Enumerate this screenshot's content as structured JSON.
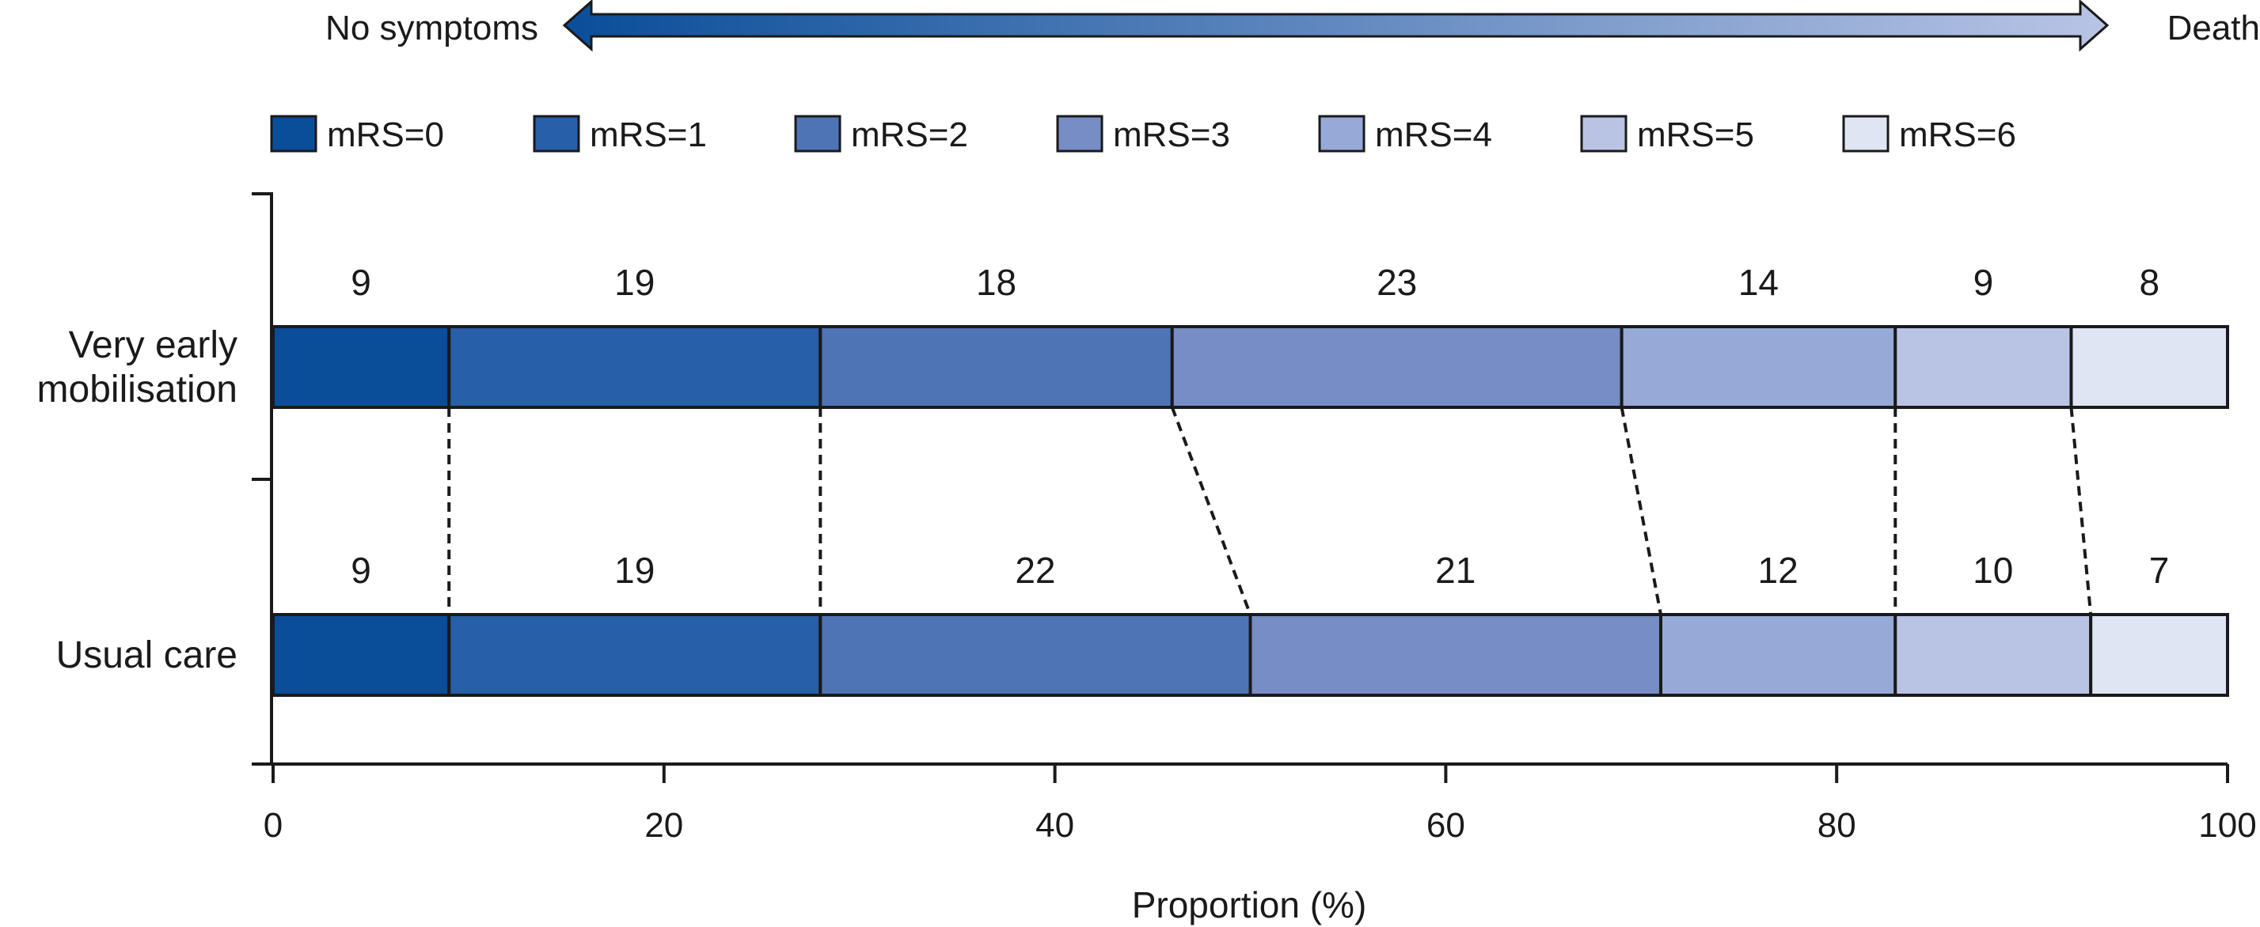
{
  "chart_data": {
    "type": "bar",
    "orientation": "horizontal",
    "stacked": true,
    "scale_arrow": {
      "left": "No symptoms",
      "right": "Death"
    },
    "legend": [
      "mRS=0",
      "mRS=1",
      "mRS=2",
      "mRS=3",
      "mRS=4",
      "mRS=5",
      "mRS=6"
    ],
    "colors": [
      "#0a4d99",
      "#275fa8",
      "#4f74b6",
      "#768dc5",
      "#97a9d6",
      "#b9c4e5",
      "#e0e5f3"
    ],
    "categories": [
      "Very early\nmobilisation",
      "Usual care"
    ],
    "rows": [
      {
        "label": "Very early\nmobilisation",
        "values": [
          9,
          19,
          18,
          23,
          14,
          9,
          8
        ]
      },
      {
        "label": "Usual care",
        "values": [
          9,
          19,
          22,
          21,
          12,
          10,
          7
        ]
      }
    ],
    "xlabel": "Proportion (%)",
    "xlim": [
      0,
      100
    ],
    "xticks": [
      0,
      20,
      40,
      60,
      80,
      100
    ],
    "grid": false,
    "legend_position": "top",
    "connectors": "dashed"
  }
}
